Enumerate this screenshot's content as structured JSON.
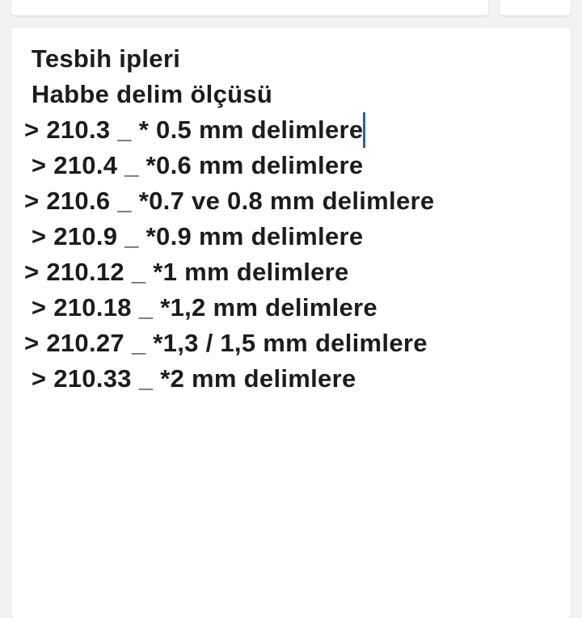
{
  "editor": {
    "lines": [
      " Tesbih ipleri",
      " Habbe delim ölçüsü",
      "> 210.3 _ * 0.5 mm delimlere",
      " > 210.4 _ *0.6 mm delimlere",
      "> 210.6 _ *0.7 ve 0.8 mm delimlere",
      " > 210.9 _ *0.9 mm delimlere",
      "> 210.12 _ *1 mm delimlere",
      " > 210.18 _ *1,2 mm delimlere",
      "> 210.27 _ *1,3 / 1,5 mm delimlere",
      " > 210.33 _ *2 mm delimlere"
    ]
  },
  "colors": {
    "caret": "#2f5fa7",
    "background": "#f2f2f2",
    "card": "#ffffff",
    "text": "#1c1c1c"
  }
}
